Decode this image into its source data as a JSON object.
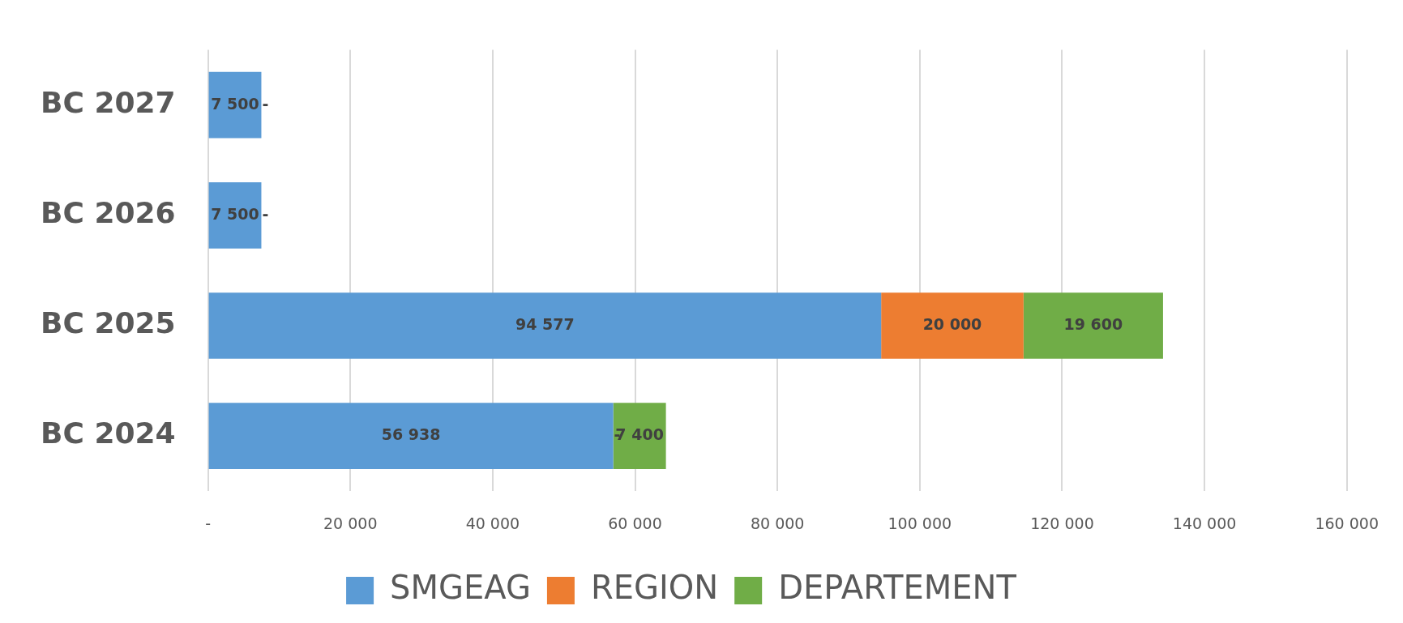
{
  "chart_data": {
    "type": "bar",
    "orientation": "horizontal",
    "stacked": true,
    "categories": [
      "BC 2027",
      "BC 2026",
      "BC 2025",
      "BC 2024"
    ],
    "series": [
      {
        "name": "SMGEAG",
        "color": "#5b9bd5",
        "values": [
          7500,
          7500,
          94577,
          56938
        ],
        "value_labels": [
          "7 500",
          "7 500",
          "94 577",
          "56 938"
        ]
      },
      {
        "name": "REGION",
        "color": "#ed7d31",
        "values": [
          0,
          0,
          20000,
          0
        ],
        "value_labels": [
          "-",
          "-",
          "20 000",
          "-"
        ]
      },
      {
        "name": "DEPARTEMENT",
        "color": "#70ad47",
        "values": [
          0,
          0,
          19600,
          7400
        ],
        "value_labels": [
          null,
          null,
          "19 600",
          "7 400"
        ]
      }
    ],
    "xlim": [
      0,
      160000
    ],
    "xticks": [
      {
        "value": 0,
        "label": "-"
      },
      {
        "value": 20000,
        "label": "20 000"
      },
      {
        "value": 40000,
        "label": "40 000"
      },
      {
        "value": 60000,
        "label": "60 000"
      },
      {
        "value": 80000,
        "label": "80 000"
      },
      {
        "value": 100000,
        "label": "100 000"
      },
      {
        "value": 120000,
        "label": "120 000"
      },
      {
        "value": 140000,
        "label": "140 000"
      },
      {
        "value": 160000,
        "label": "160 000"
      }
    ],
    "grid": "x",
    "legend": "bottom"
  }
}
